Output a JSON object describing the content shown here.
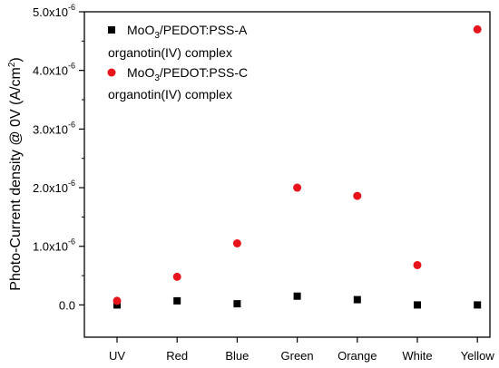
{
  "chart_data": {
    "type": "scatter",
    "categories": [
      "UV",
      "Red",
      "Blue",
      "Green",
      "Orange",
      "White",
      "Yellow"
    ],
    "ylabel_prefix": "Photo-Current density @ 0V (A/cm",
    "ylabel_sup": "2",
    "ylabel_suffix": ")",
    "ylim": [
      -5.5e-07,
      5e-06
    ],
    "y_ticks": [
      {
        "value": 0.0,
        "mant": "0.0",
        "exp": ""
      },
      {
        "value": 1e-06,
        "mant": "1.0x10",
        "exp": "-6"
      },
      {
        "value": 2e-06,
        "mant": "2.0x10",
        "exp": "-6"
      },
      {
        "value": 3e-06,
        "mant": "3.0x10",
        "exp": "-6"
      },
      {
        "value": 4e-06,
        "mant": "4.0x10",
        "exp": "-6"
      },
      {
        "value": 5e-06,
        "mant": "5.0x10",
        "exp": "-6"
      }
    ],
    "grid": false,
    "legend_position": "top-left",
    "series": [
      {
        "name": "MoO3/PEDOT:PSS-A organotin(IV) complex",
        "legend_line1_pre": "MoO",
        "legend_line1_sub": "3",
        "legend_line1_post": "/PEDOT:PSS-A",
        "legend_line2": "organotin(IV) complex",
        "marker": "square",
        "color": "#000000",
        "values": [
          0.0,
          7e-08,
          2e-08,
          1.5e-07,
          9e-08,
          0.0,
          0.0
        ]
      },
      {
        "name": "MoO3/PEDOT:PSS-C organotin(IV) complex",
        "legend_line1_pre": "MoO",
        "legend_line1_sub": "3",
        "legend_line1_post": "/PEDOT:PSS-C",
        "legend_line2": "organotin(IV) complex",
        "marker": "circle",
        "color": "#e8141b",
        "values": [
          7e-08,
          4.8e-07,
          1.05e-06,
          2e-06,
          1.86e-06,
          6.8e-07,
          4.7e-06
        ]
      }
    ]
  }
}
